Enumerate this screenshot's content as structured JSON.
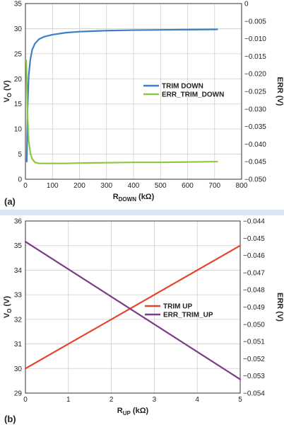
{
  "chart_data": [
    {
      "type": "line",
      "panel_label": "(a)",
      "grid": true,
      "legend_position": "right-middle",
      "xlabel": {
        "main": "R",
        "sub": "DOWN",
        "unit": " (kΩ)"
      },
      "ylabel": {
        "main": "V",
        "sub": "O",
        "unit": " (V)"
      },
      "y2label": "ERR (V)",
      "xlim": [
        0,
        800
      ],
      "xticks": [
        0,
        100,
        200,
        300,
        400,
        500,
        600,
        700,
        800
      ],
      "ylim": [
        0,
        35
      ],
      "yticks": [
        0,
        5,
        10,
        15,
        20,
        25,
        30,
        35
      ],
      "y2lim": [
        -0.05,
        0
      ],
      "y2ticks": [
        0,
        -0.005,
        -0.01,
        -0.015,
        -0.02,
        -0.025,
        -0.03,
        -0.035,
        -0.04,
        -0.045,
        -0.05
      ],
      "y2tick_labels": [
        "0",
        "−0.005",
        "−0.010",
        "−0.015",
        "−0.020",
        "−0.025",
        "−0.030",
        "−0.035",
        "−0.040",
        "−0.045",
        "−0.050"
      ],
      "series": [
        {
          "name": "TRIM DOWN",
          "axis": "left",
          "color": "#3d7fc7",
          "x": [
            5,
            8,
            12,
            18,
            25,
            35,
            50,
            70,
            100,
            150,
            200,
            300,
            400,
            500,
            600,
            710
          ],
          "y": [
            3.5,
            14,
            20.5,
            23.8,
            25.8,
            27.0,
            27.9,
            28.4,
            28.8,
            29.2,
            29.4,
            29.6,
            29.7,
            29.75,
            29.8,
            29.85
          ]
        },
        {
          "name": "ERR_TRIM_DOWN",
          "axis": "right",
          "color": "#8dc63f",
          "x": [
            3,
            5,
            8,
            12,
            18,
            25,
            35,
            50,
            70,
            100,
            150,
            200,
            300,
            400,
            500,
            600,
            710
          ],
          "y": [
            -0.0162,
            -0.023,
            -0.032,
            -0.039,
            -0.0425,
            -0.0442,
            -0.0452,
            -0.0455,
            -0.0455,
            -0.0455,
            -0.0455,
            -0.0454,
            -0.0453,
            -0.0452,
            -0.0452,
            -0.0451,
            -0.045
          ]
        }
      ]
    },
    {
      "type": "line",
      "panel_label": "(b)",
      "grid": true,
      "legend_position": "right-middle",
      "xlabel": {
        "main": "R",
        "sub": "UP",
        "unit": " (kΩ)"
      },
      "ylabel": {
        "main": "V",
        "sub": "O",
        "unit": " (V)"
      },
      "y2label": "ERR (V)",
      "xlim": [
        0,
        5
      ],
      "xticks": [
        0,
        1,
        2,
        3,
        4,
        5
      ],
      "ylim": [
        29,
        36
      ],
      "yticks": [
        29,
        30,
        31,
        32,
        33,
        34,
        35,
        36
      ],
      "y2lim": [
        -0.054,
        -0.044
      ],
      "y2ticks": [
        -0.044,
        -0.045,
        -0.046,
        -0.047,
        -0.048,
        -0.049,
        -0.05,
        -0.051,
        -0.052,
        -0.053,
        -0.054
      ],
      "y2tick_labels": [
        "−0.044",
        "−0.045",
        "−0.046",
        "−0.047",
        "−0.048",
        "−0.049",
        "−0.050",
        "−0.051",
        "−0.052",
        "−0.053",
        "−0.054"
      ],
      "series": [
        {
          "name": "TRIM UP",
          "axis": "left",
          "color": "#e8442c",
          "x": [
            0,
            5
          ],
          "y": [
            30.0,
            35.0
          ]
        },
        {
          "name": "ERR_TRIM_UP",
          "axis": "right",
          "color": "#7d3b8a",
          "x": [
            0,
            5
          ],
          "y": [
            -0.0452,
            -0.0532
          ]
        }
      ]
    }
  ]
}
